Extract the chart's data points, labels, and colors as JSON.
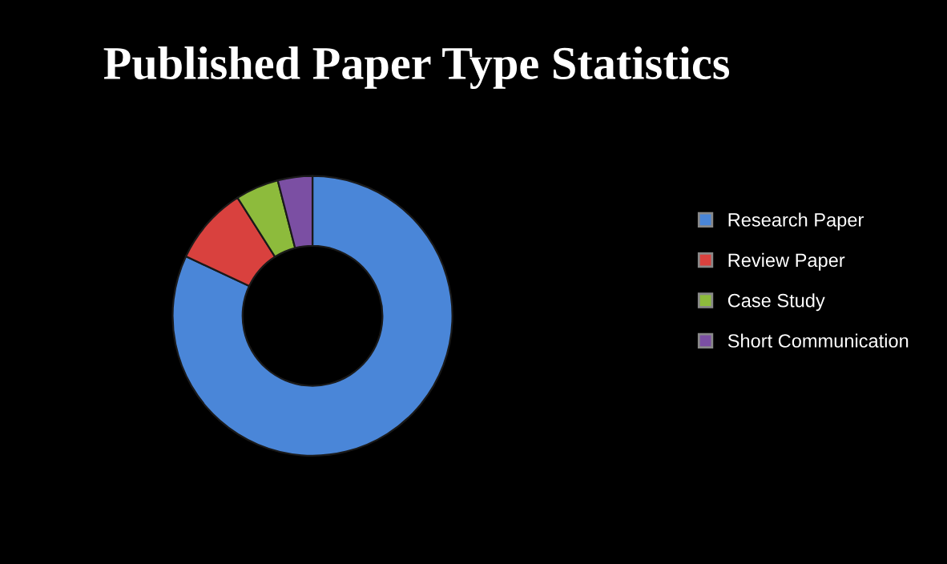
{
  "chart_data": {
    "type": "donut",
    "title": "Published Paper Type Statistics",
    "categories": [
      "Research Paper",
      "Review Paper",
      "Case Study",
      "Short Communication"
    ],
    "values": [
      82,
      9,
      5,
      4
    ],
    "colors": [
      "#4a86d8",
      "#d9413e",
      "#8dbb3c",
      "#7b4fa3"
    ],
    "legend": "right"
  }
}
